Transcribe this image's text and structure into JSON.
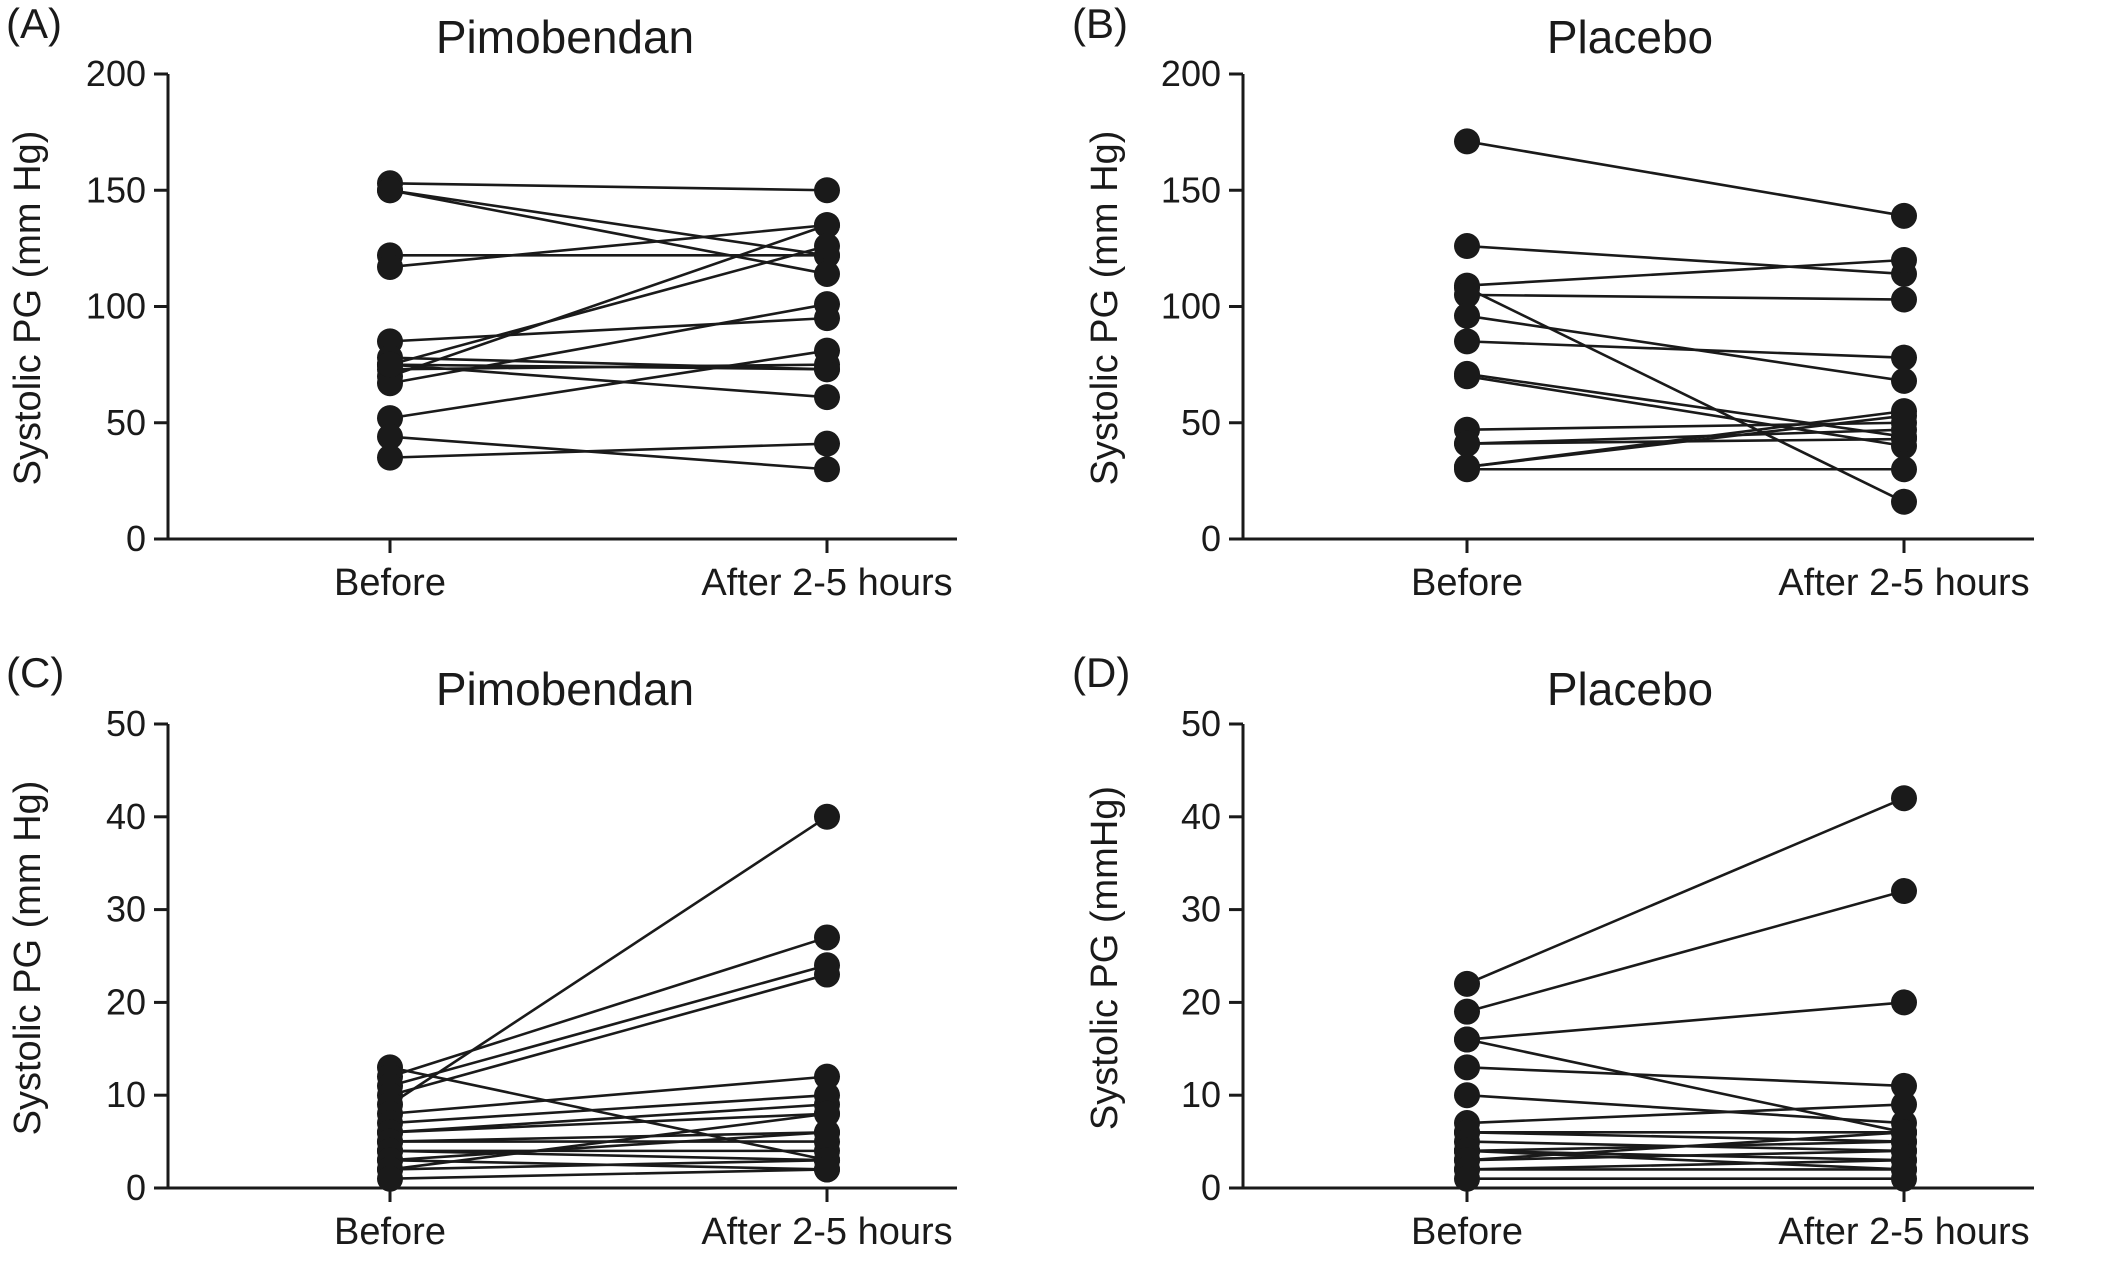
{
  "chart_data": [
    {
      "type": "line",
      "panel": "(A)",
      "title": "Pimobendan",
      "ylabel": "Systolic PG (mm Hg)",
      "categories": [
        "Before",
        "After 2-5 hours"
      ],
      "ylim": [
        0,
        200
      ],
      "yticks": [
        0,
        50,
        100,
        150,
        200
      ],
      "pairs": [
        [
          153,
          150
        ],
        [
          150,
          122
        ],
        [
          122,
          122
        ],
        [
          117,
          135
        ],
        [
          85,
          95
        ],
        [
          78,
          73
        ],
        [
          75,
          73
        ],
        [
          73,
          75
        ],
        [
          70,
          135
        ],
        [
          67,
          101
        ],
        [
          52,
          81
        ],
        [
          44,
          30
        ],
        [
          35,
          41
        ],
        [
          75,
          61
        ],
        [
          150,
          114
        ],
        [
          75,
          126
        ]
      ]
    },
    {
      "type": "line",
      "panel": "(B)",
      "title": "Placebo",
      "ylabel": "Systolic PG (mm Hg)",
      "categories": [
        "Before",
        "After 2-5 hours"
      ],
      "ylim": [
        0,
        200
      ],
      "yticks": [
        0,
        50,
        100,
        150,
        200
      ],
      "pairs": [
        [
          171,
          139
        ],
        [
          126,
          114
        ],
        [
          109,
          120
        ],
        [
          108,
          16
        ],
        [
          105,
          103
        ],
        [
          96,
          68
        ],
        [
          85,
          78
        ],
        [
          71,
          44
        ],
        [
          70,
          40
        ],
        [
          47,
          50
        ],
        [
          41,
          43
        ],
        [
          31,
          55
        ],
        [
          30,
          30
        ],
        [
          31,
          53
        ],
        [
          41,
          47
        ]
      ]
    },
    {
      "type": "line",
      "panel": "(C)",
      "title": "Pimobendan",
      "ylabel": "Systolic PG (mm Hg)",
      "categories": [
        "Before",
        "After 2-5 hours"
      ],
      "ylim": [
        0,
        50
      ],
      "yticks": [
        0,
        10,
        20,
        30,
        40,
        50
      ],
      "pairs": [
        [
          13,
          3
        ],
        [
          12,
          27
        ],
        [
          11,
          24
        ],
        [
          10,
          23
        ],
        [
          9,
          40
        ],
        [
          8,
          12
        ],
        [
          7,
          10
        ],
        [
          6,
          9
        ],
        [
          6,
          8
        ],
        [
          5,
          6
        ],
        [
          5,
          5
        ],
        [
          4,
          4
        ],
        [
          4,
          3
        ],
        [
          3,
          2
        ],
        [
          3,
          6
        ],
        [
          2,
          3
        ],
        [
          2,
          8
        ],
        [
          1,
          2
        ]
      ]
    },
    {
      "type": "line",
      "panel": "(D)",
      "title": "Placebo",
      "ylabel": "Systolic PG (mmHg)",
      "categories": [
        "Before",
        "After 2-5 hours"
      ],
      "ylim": [
        0,
        50
      ],
      "yticks": [
        0,
        10,
        20,
        30,
        40,
        50
      ],
      "pairs": [
        [
          22,
          42
        ],
        [
          19,
          32
        ],
        [
          16,
          20
        ],
        [
          16,
          6
        ],
        [
          13,
          11
        ],
        [
          10,
          7
        ],
        [
          7,
          9
        ],
        [
          6,
          6
        ],
        [
          6,
          5
        ],
        [
          5,
          4
        ],
        [
          4,
          5
        ],
        [
          4,
          3
        ],
        [
          4,
          2
        ],
        [
          3,
          4
        ],
        [
          3,
          6
        ],
        [
          2,
          3
        ],
        [
          2,
          2
        ],
        [
          1,
          1
        ]
      ]
    }
  ]
}
